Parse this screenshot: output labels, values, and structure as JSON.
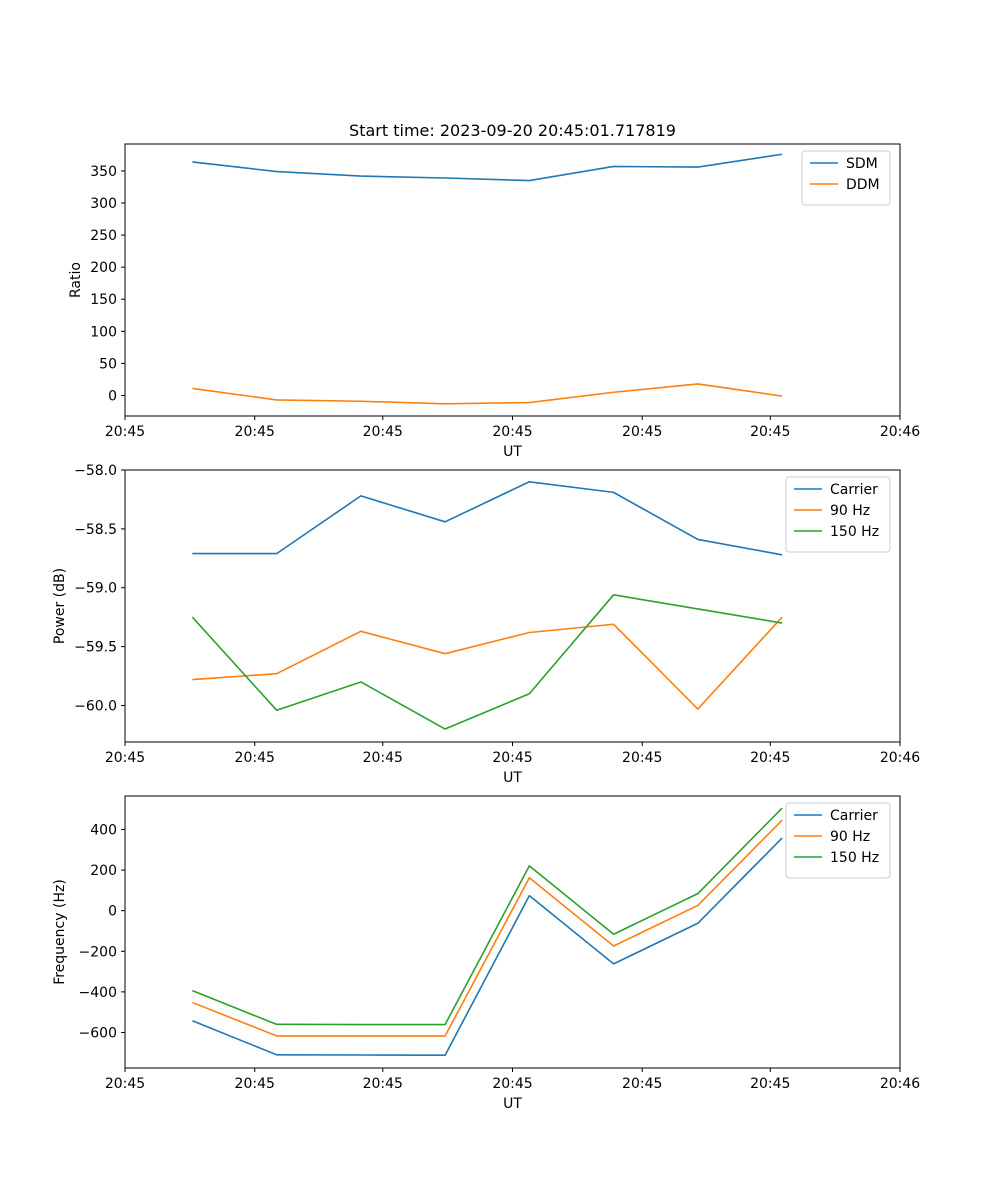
{
  "figure": {
    "title": "Start time: 2023-09-20 20:45:01.717819"
  },
  "colors": {
    "blue": "#1f77b4",
    "orange": "#ff7f0e",
    "green": "#2ca02c"
  },
  "chart_data": [
    {
      "type": "line",
      "title": "Start time: 2023-09-20 20:45:01.717819",
      "xlabel": "UT",
      "ylabel": "Ratio",
      "x": [
        0.4,
        0.9,
        1.4,
        1.9,
        2.4,
        2.9,
        3.4,
        3.9
      ],
      "xlim": [
        0,
        4.6
      ],
      "ylim": [
        -32,
        392
      ],
      "xticks": [
        {
          "v": 0.0,
          "label": "20:45"
        },
        {
          "v": 0.77,
          "label": "20:45"
        },
        {
          "v": 1.53,
          "label": "20:45"
        },
        {
          "v": 2.3,
          "label": "20:45"
        },
        {
          "v": 3.07,
          "label": "20:45"
        },
        {
          "v": 3.83,
          "label": "20:45"
        },
        {
          "v": 4.6,
          "label": "20:46"
        }
      ],
      "yticks": [
        {
          "v": 0,
          "label": "0"
        },
        {
          "v": 50,
          "label": "50"
        },
        {
          "v": 100,
          "label": "100"
        },
        {
          "v": 150,
          "label": "150"
        },
        {
          "v": 200,
          "label": "200"
        },
        {
          "v": 250,
          "label": "250"
        },
        {
          "v": 300,
          "label": "300"
        },
        {
          "v": 350,
          "label": "350"
        }
      ],
      "legend_position": "top-right",
      "series": [
        {
          "name": "SDM",
          "color": "blue",
          "values": [
            364,
            349,
            342,
            339,
            335,
            357,
            356,
            376
          ]
        },
        {
          "name": "DDM",
          "color": "orange",
          "values": [
            11,
            -7,
            -9,
            -13,
            -11,
            5,
            18,
            -1
          ]
        }
      ]
    },
    {
      "type": "line",
      "title": "",
      "xlabel": "UT",
      "ylabel": "Power (dB)",
      "x": [
        0.4,
        0.9,
        1.4,
        1.9,
        2.4,
        2.9,
        3.4,
        3.9
      ],
      "xlim": [
        0,
        4.6
      ],
      "ylim": [
        -60.31,
        -58.0
      ],
      "xticks": [
        {
          "v": 0.0,
          "label": "20:45"
        },
        {
          "v": 0.77,
          "label": "20:45"
        },
        {
          "v": 1.53,
          "label": "20:45"
        },
        {
          "v": 2.3,
          "label": "20:45"
        },
        {
          "v": 3.07,
          "label": "20:45"
        },
        {
          "v": 3.83,
          "label": "20:45"
        },
        {
          "v": 4.6,
          "label": "20:46"
        }
      ],
      "yticks": [
        {
          "v": -60.0,
          "label": "−60.0"
        },
        {
          "v": -59.5,
          "label": "−59.5"
        },
        {
          "v": -59.0,
          "label": "−59.0"
        },
        {
          "v": -58.5,
          "label": "−58.5"
        },
        {
          "v": -58.0,
          "label": "−58.0"
        }
      ],
      "legend_position": "top-right",
      "series": [
        {
          "name": "Carrier",
          "color": "blue",
          "values": [
            -58.71,
            -58.71,
            -58.22,
            -58.44,
            -58.1,
            -58.19,
            -58.59,
            -58.72
          ]
        },
        {
          "name": "90 Hz",
          "color": "orange",
          "values": [
            -59.78,
            -59.73,
            -59.37,
            -59.56,
            -59.38,
            -59.31,
            -60.03,
            -59.25
          ]
        },
        {
          "name": "150 Hz",
          "color": "green",
          "values": [
            -59.25,
            -60.04,
            -59.8,
            -60.2,
            -59.9,
            -59.06,
            -59.18,
            -59.3
          ]
        }
      ]
    },
    {
      "type": "line",
      "title": "",
      "xlabel": "UT",
      "ylabel": "Frequency (Hz)",
      "x": [
        0.4,
        0.9,
        1.4,
        1.9,
        2.4,
        2.9,
        3.4,
        3.9
      ],
      "xlim": [
        0,
        4.6
      ],
      "ylim": [
        -775,
        565
      ],
      "xticks": [
        {
          "v": 0.0,
          "label": "20:45"
        },
        {
          "v": 0.77,
          "label": "20:45"
        },
        {
          "v": 1.53,
          "label": "20:45"
        },
        {
          "v": 2.3,
          "label": "20:45"
        },
        {
          "v": 3.07,
          "label": "20:45"
        },
        {
          "v": 3.83,
          "label": "20:45"
        },
        {
          "v": 4.6,
          "label": "20:46"
        }
      ],
      "yticks": [
        {
          "v": -600,
          "label": "−600"
        },
        {
          "v": -400,
          "label": "−400"
        },
        {
          "v": -200,
          "label": "−200"
        },
        {
          "v": 0,
          "label": "0"
        },
        {
          "v": 200,
          "label": "200"
        },
        {
          "v": 400,
          "label": "400"
        }
      ],
      "legend_position": "top-right",
      "series": [
        {
          "name": "Carrier",
          "color": "blue",
          "values": [
            -542,
            -710,
            -711,
            -712,
            74,
            -262,
            -62,
            358
          ]
        },
        {
          "name": "90 Hz",
          "color": "orange",
          "values": [
            -452,
            -617,
            -617,
            -617,
            162,
            -174,
            26,
            446
          ]
        },
        {
          "name": "150 Hz",
          "color": "green",
          "values": [
            -394,
            -560,
            -561,
            -561,
            221,
            -116,
            84,
            505
          ]
        }
      ]
    }
  ]
}
